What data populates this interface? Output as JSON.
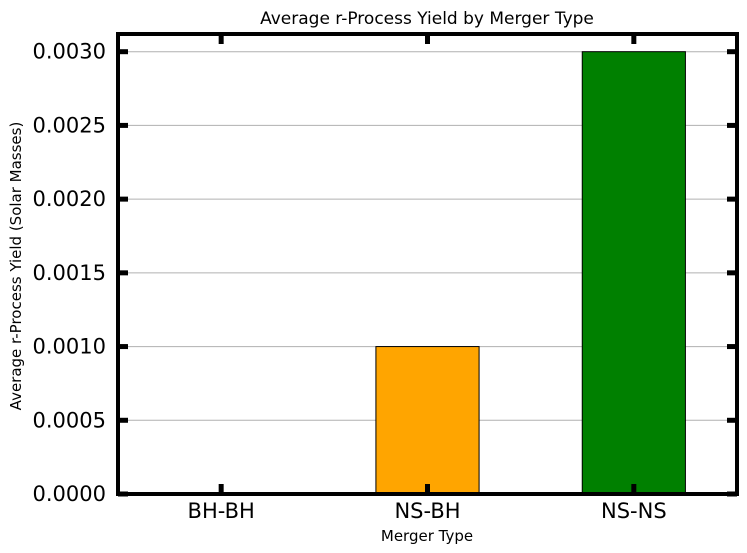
{
  "chart_data": {
    "type": "bar",
    "title": "Average r-Process Yield by Merger Type",
    "xlabel": "Merger Type",
    "ylabel": "Average r-Process Yield (Solar Masses)",
    "categories": [
      "BH-BH",
      "NS-BH",
      "NS-NS"
    ],
    "values": [
      0.0,
      0.001,
      0.003
    ],
    "colors": [
      "#1f77b4",
      "#ffa500",
      "#008000"
    ],
    "ylim": [
      0,
      0.00312
    ],
    "yticks": [
      0.0,
      0.0005,
      0.001,
      0.0015,
      0.002,
      0.0025,
      0.003
    ],
    "ytick_labels": [
      "0.0000",
      "0.0005",
      "0.0010",
      "0.0015",
      "0.0020",
      "0.0025",
      "0.0030"
    ],
    "grid": "y",
    "legend": "none"
  }
}
